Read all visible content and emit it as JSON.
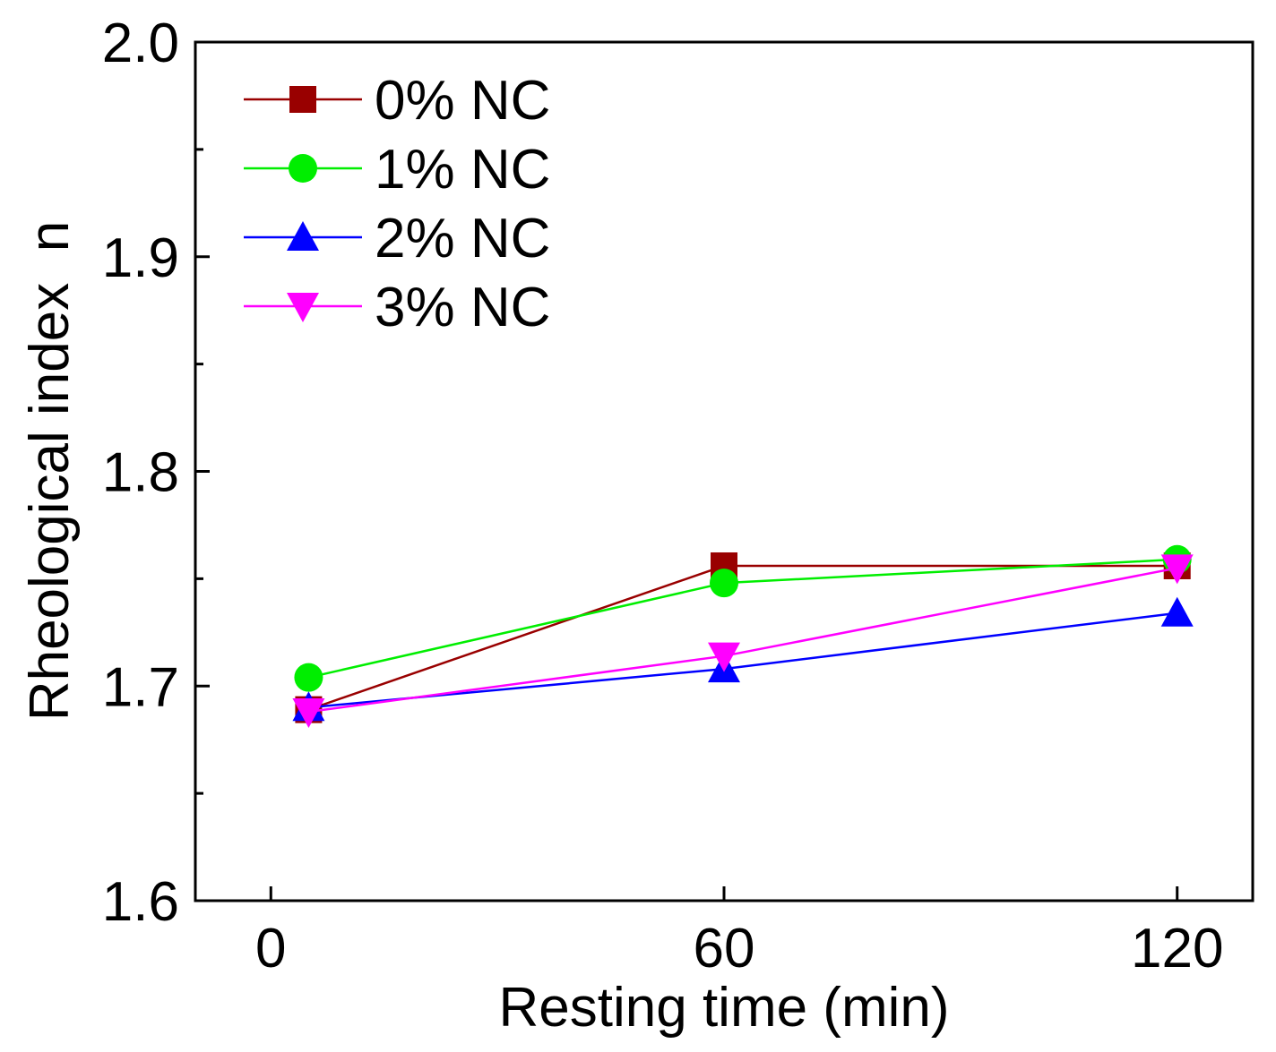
{
  "chart_data": {
    "type": "line",
    "title": "",
    "xlabel": "Resting time (min)",
    "ylabel": "Rheological index  n",
    "xlim": [
      -10,
      130
    ],
    "ylim": [
      1.6,
      2.0
    ],
    "x_ticks": [
      0,
      60,
      120
    ],
    "x_tick_labels": [
      "0",
      "60",
      "120"
    ],
    "y_ticks": [
      1.6,
      1.7,
      1.8,
      1.9,
      2.0
    ],
    "y_tick_labels": [
      "1.6",
      "1.7",
      "1.8",
      "1.9",
      "2.0"
    ],
    "y_minor_ticks": [
      1.65,
      1.75,
      1.85,
      1.95
    ],
    "grid": false,
    "legend_position": "top-left",
    "x": [
      5,
      60,
      120
    ],
    "series": [
      {
        "name": "0% NC",
        "color": "#990000",
        "marker": "square",
        "values": [
          1.689,
          1.756,
          1.756
        ]
      },
      {
        "name": "1% NC",
        "color": "#00ee00",
        "marker": "circle",
        "values": [
          1.704,
          1.748,
          1.759
        ]
      },
      {
        "name": "2% NC",
        "color": "#0000ff",
        "marker": "triangle-up",
        "values": [
          1.69,
          1.708,
          1.734
        ]
      },
      {
        "name": "3% NC",
        "color": "#ff00ff",
        "marker": "triangle-down",
        "values": [
          1.688,
          1.714,
          1.755
        ]
      }
    ]
  }
}
